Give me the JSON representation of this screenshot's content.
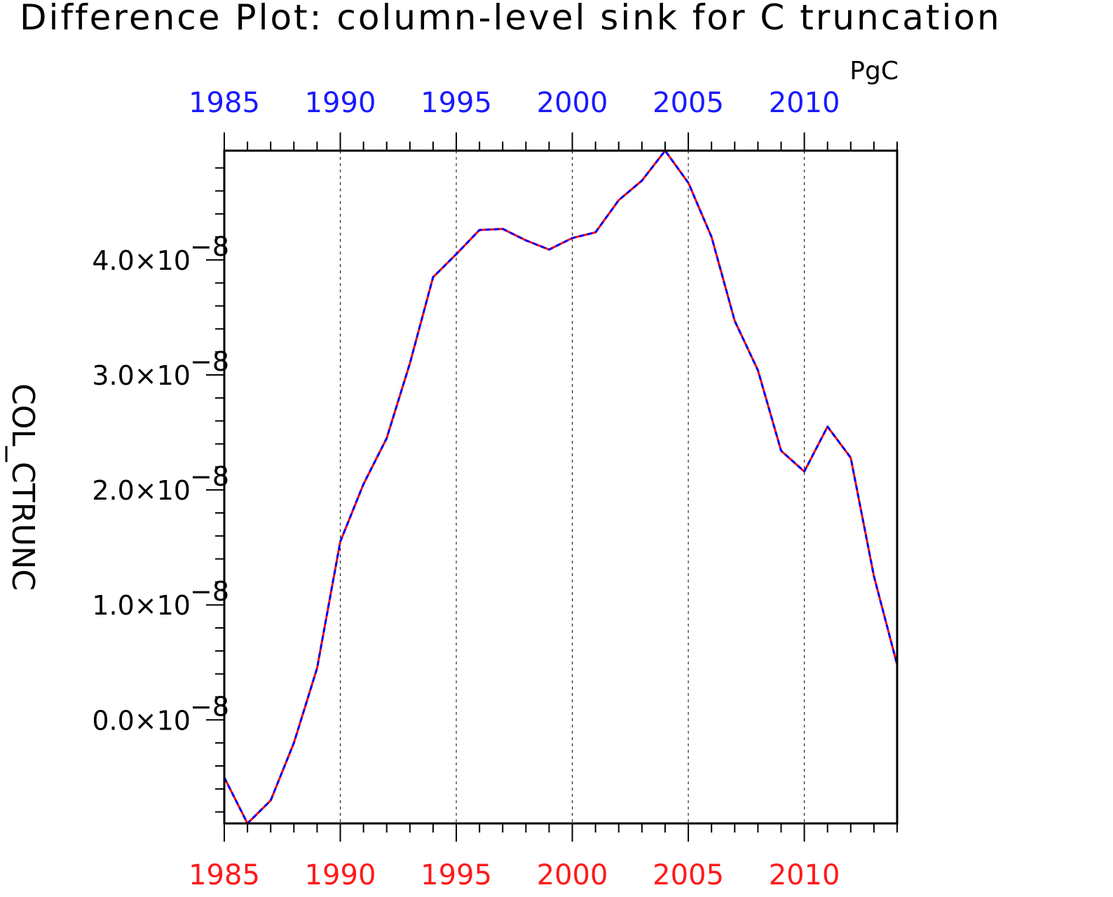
{
  "colors": {
    "top_axis": "#1a1aff",
    "bottom_axis": "#ff1a1a",
    "series_a": "#ff0000",
    "series_b": "#0000ff"
  },
  "chart_data": {
    "type": "line",
    "title": "Difference Plot: column-level sink for C truncation",
    "units": "PgC",
    "ylabel": "COL_CTRUNC",
    "xlim": [
      1985,
      2014
    ],
    "ylim": [
      -9e-09,
      4.95e-08
    ],
    "x_ticks": [
      1985,
      1990,
      1995,
      2000,
      2005,
      2010
    ],
    "x_tick_labels": [
      "1985",
      "1990",
      "1995",
      "2000",
      "2005",
      "2010"
    ],
    "y_ticks": [
      0.0,
      1e-08,
      2e-08,
      3e-08,
      4e-08
    ],
    "y_tick_labels": [
      {
        "mantissa": "0.0×10",
        "exp": "−8"
      },
      {
        "mantissa": "1.0×10",
        "exp": "−8"
      },
      {
        "mantissa": "2.0×10",
        "exp": "−8"
      },
      {
        "mantissa": "3.0×10",
        "exp": "−8"
      },
      {
        "mantissa": "4.0×10",
        "exp": "−8"
      }
    ],
    "grid": "vertical dashed at major x ticks",
    "x": [
      1985,
      1986,
      1987,
      1988,
      1989,
      1990,
      1991,
      1992,
      1993,
      1994,
      1995,
      1996,
      1997,
      1998,
      1999,
      2000,
      2001,
      2002,
      2003,
      2004,
      2005,
      2006,
      2007,
      2008,
      2009,
      2010,
      2011,
      2012,
      2013,
      2014
    ],
    "series": [
      {
        "color": "#ff0000",
        "style": "solid",
        "values": [
          -5e-09,
          -9e-09,
          -7e-09,
          -2e-09,
          4.5e-09,
          1.55e-08,
          2.05e-08,
          2.45e-08,
          3.1e-08,
          3.85e-08,
          4.05e-08,
          4.26e-08,
          4.27e-08,
          4.17e-08,
          4.09e-08,
          4.19e-08,
          4.24e-08,
          4.52e-08,
          4.69e-08,
          4.95e-08,
          4.67e-08,
          4.2e-08,
          3.47e-08,
          3.04e-08,
          2.34e-08,
          2.16e-08,
          2.55e-08,
          2.28e-08,
          1.25e-08,
          4.8e-09
        ]
      },
      {
        "color": "#0000ff",
        "style": "dashed",
        "values": [
          -5e-09,
          -9e-09,
          -7e-09,
          -2e-09,
          4.5e-09,
          1.55e-08,
          2.05e-08,
          2.45e-08,
          3.1e-08,
          3.85e-08,
          4.05e-08,
          4.26e-08,
          4.27e-08,
          4.17e-08,
          4.09e-08,
          4.19e-08,
          4.24e-08,
          4.52e-08,
          4.69e-08,
          4.95e-08,
          4.67e-08,
          4.2e-08,
          3.47e-08,
          3.04e-08,
          2.34e-08,
          2.16e-08,
          2.55e-08,
          2.28e-08,
          1.25e-08,
          4.8e-09
        ]
      }
    ]
  }
}
